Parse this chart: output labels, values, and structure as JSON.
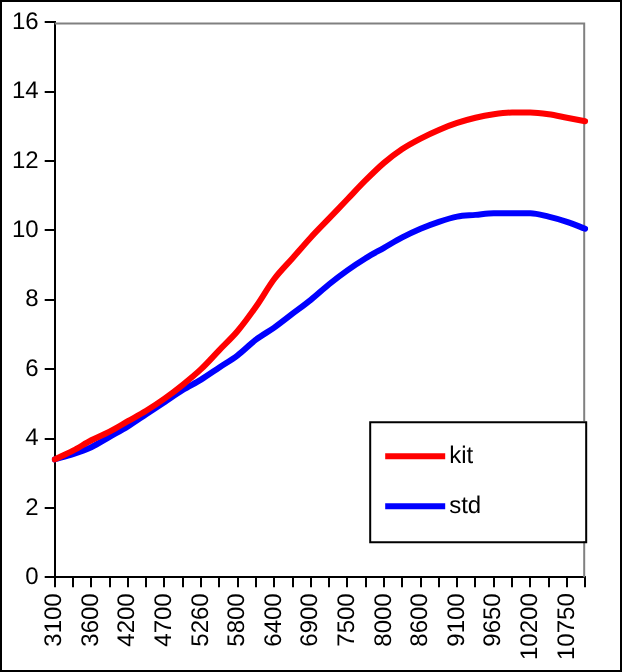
{
  "chart_data": {
    "type": "line",
    "categories": [
      "3100",
      null,
      "3600",
      null,
      "4200",
      null,
      "4700",
      null,
      "5260",
      null,
      "5800",
      null,
      "6400",
      null,
      "6900",
      null,
      "7500",
      null,
      "8000",
      null,
      "8600",
      null,
      "9100",
      null,
      "9650",
      null,
      "10200",
      null,
      "10750",
      null
    ],
    "series": [
      {
        "name": "kit",
        "color": "#ff0000",
        "values": [
          3.4,
          3.65,
          3.95,
          4.2,
          4.5,
          4.8,
          5.15,
          5.55,
          6.0,
          6.55,
          7.1,
          7.8,
          8.6,
          9.2,
          9.8,
          10.35,
          10.9,
          11.45,
          11.95,
          12.35,
          12.65,
          12.9,
          13.1,
          13.25,
          13.35,
          13.4,
          13.4,
          13.35,
          13.25,
          13.15
        ]
      },
      {
        "name": "std",
        "color": "#0000ff",
        "values": [
          3.4,
          3.55,
          3.75,
          4.05,
          4.35,
          4.7,
          5.05,
          5.4,
          5.7,
          6.05,
          6.4,
          6.85,
          7.2,
          7.6,
          8.0,
          8.45,
          8.85,
          9.2,
          9.5,
          9.8,
          10.05,
          10.25,
          10.4,
          10.45,
          10.5,
          10.5,
          10.5,
          10.4,
          10.25,
          10.05
        ]
      }
    ],
    "ylim": [
      0,
      16
    ],
    "yticks": [
      0,
      2,
      4,
      6,
      8,
      10,
      12,
      14,
      16
    ],
    "grid": false,
    "legend": "bottom right",
    "marker": "none",
    "line_style": "solid"
  }
}
